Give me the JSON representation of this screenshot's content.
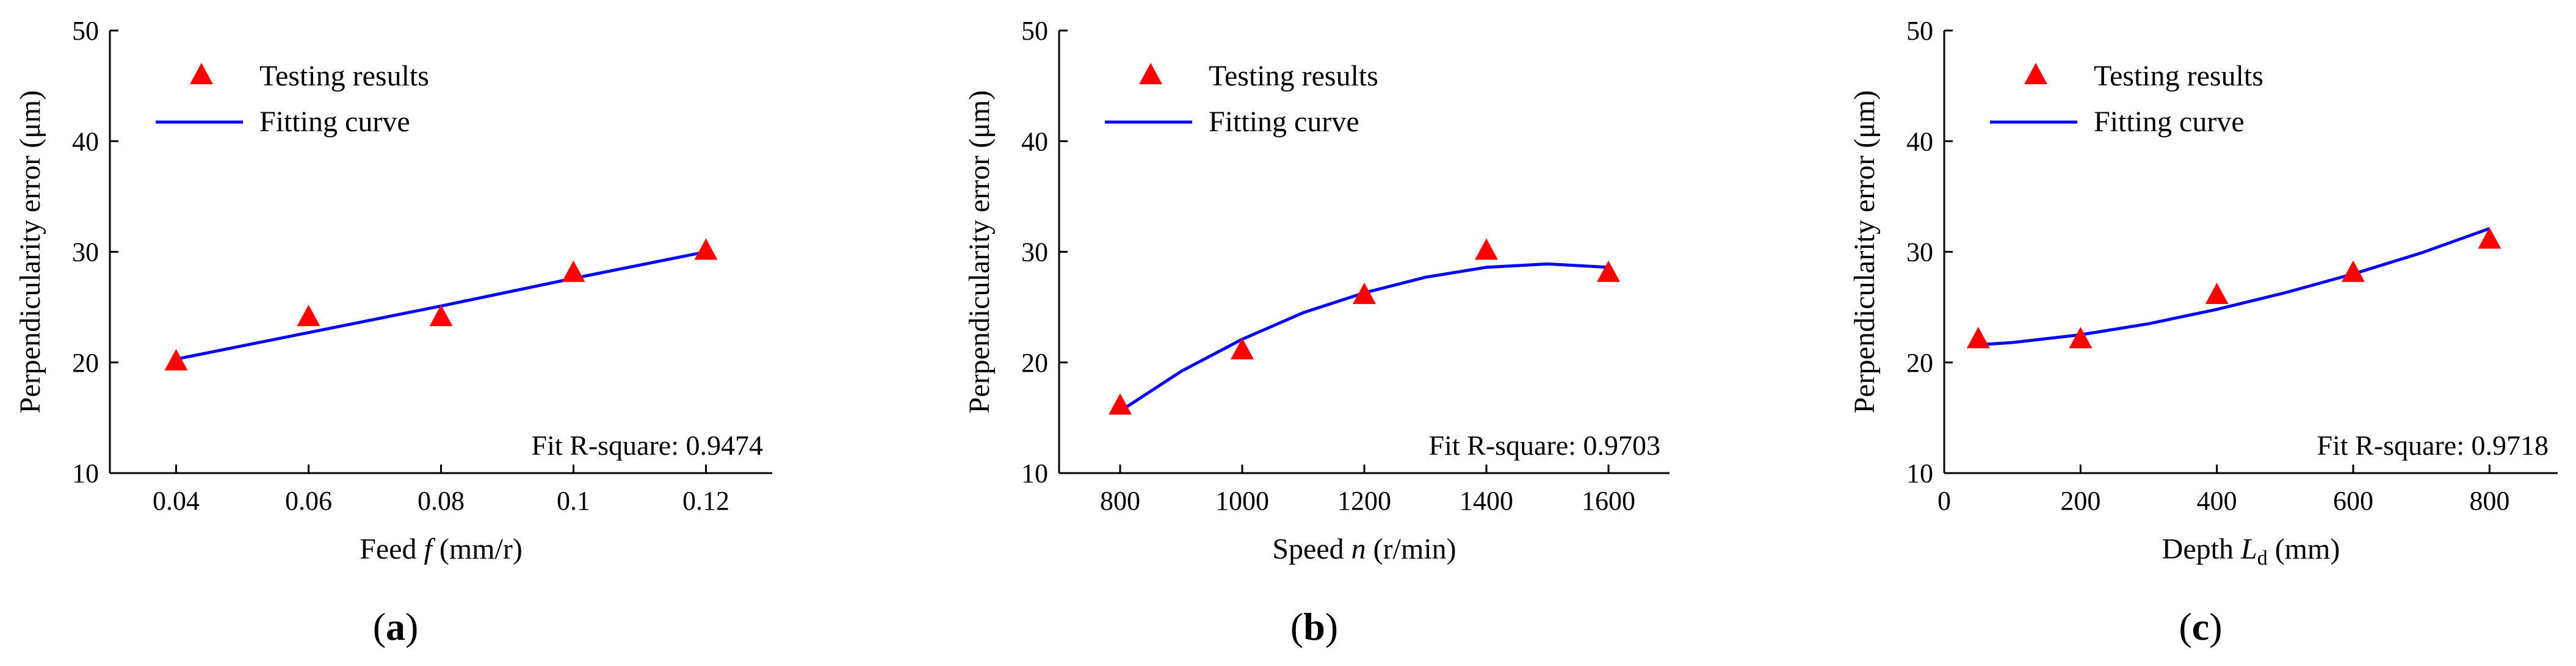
{
  "chart_data": [
    {
      "type": "scatter",
      "panel_label": "a",
      "xlabel": "Feed f (mm/r)",
      "xlabel_parts": {
        "pre": "Feed ",
        "var": "f",
        "sub": "",
        "post": " (mm/r)"
      },
      "ylabel": "Perpendicularity error (μm)",
      "xlim": [
        0.03,
        0.13
      ],
      "ylim": [
        10,
        50
      ],
      "xticks": [
        0.04,
        0.06,
        0.08,
        0.1,
        0.12
      ],
      "xtick_labels": [
        "0.04",
        "0.06",
        "0.08",
        "0.1",
        "0.12"
      ],
      "yticks": [
        10,
        20,
        30,
        40,
        50
      ],
      "ytick_labels": [
        "10",
        "20",
        "30",
        "40",
        "50"
      ],
      "legend": [
        "Testing results",
        "Fitting curve"
      ],
      "legend_position": "top-left",
      "annotation": "Fit R-square: 0.9474",
      "series": [
        {
          "name": "Testing results",
          "kind": "points",
          "color": "#ff0000",
          "x": [
            0.04,
            0.06,
            0.08,
            0.1,
            0.12
          ],
          "y": [
            20,
            24,
            24,
            28,
            30
          ]
        },
        {
          "name": "Fitting curve",
          "kind": "line",
          "color": "#0000ff",
          "x": [
            0.04,
            0.06,
            0.08,
            0.1,
            0.12
          ],
          "y": [
            20.3,
            22.7,
            25.1,
            27.6,
            30.0
          ]
        }
      ]
    },
    {
      "type": "scatter",
      "panel_label": "b",
      "xlabel": "Speed n (r/min)",
      "xlabel_parts": {
        "pre": "Speed ",
        "var": "n",
        "sub": "",
        "post": " (r/min)"
      },
      "ylabel": "Perpendicularity error (μm)",
      "xlim": [
        700,
        1700
      ],
      "ylim": [
        10,
        50
      ],
      "xticks": [
        800,
        1000,
        1200,
        1400,
        1600
      ],
      "xtick_labels": [
        "800",
        "1000",
        "1200",
        "1400",
        "1600"
      ],
      "yticks": [
        10,
        20,
        30,
        40,
        50
      ],
      "ytick_labels": [
        "10",
        "20",
        "30",
        "40",
        "50"
      ],
      "legend": [
        "Testing results",
        "Fitting curve"
      ],
      "legend_position": "top-left",
      "annotation": "Fit R-square: 0.9703",
      "series": [
        {
          "name": "Testing results",
          "kind": "points",
          "color": "#ff0000",
          "x": [
            800,
            1000,
            1200,
            1400,
            1600
          ],
          "y": [
            16,
            21,
            26,
            30,
            28
          ]
        },
        {
          "name": "Fitting curve",
          "kind": "line",
          "color": "#0000ff",
          "x": [
            800,
            900,
            1000,
            1100,
            1200,
            1300,
            1400,
            1500,
            1600
          ],
          "y": [
            15.6,
            19.2,
            22.1,
            24.5,
            26.3,
            27.7,
            28.6,
            28.9,
            28.6
          ]
        }
      ]
    },
    {
      "type": "scatter",
      "panel_label": "c",
      "xlabel": "Depth Ld (mm)",
      "xlabel_parts": {
        "pre": "Depth ",
        "var": "L",
        "sub": "d",
        "post": " (mm)"
      },
      "ylabel": "Perpendicularity error (μm)",
      "xlim": [
        0,
        900
      ],
      "ylim": [
        10,
        50
      ],
      "xticks": [
        0,
        200,
        400,
        600,
        800
      ],
      "xtick_labels": [
        "0",
        "200",
        "400",
        "600",
        "800"
      ],
      "yticks": [
        10,
        20,
        30,
        40,
        50
      ],
      "ytick_labels": [
        "10",
        "20",
        "30",
        "40",
        "50"
      ],
      "legend": [
        "Testing results",
        "Fitting curve"
      ],
      "legend_position": "top-left",
      "annotation": "Fit R-square: 0.9718",
      "series": [
        {
          "name": "Testing results",
          "kind": "points",
          "color": "#ff0000",
          "x": [
            50,
            200,
            400,
            600,
            800
          ],
          "y": [
            22,
            22,
            26,
            28,
            31
          ]
        },
        {
          "name": "Fitting curve",
          "kind": "line",
          "color": "#0000ff",
          "x": [
            50,
            100,
            200,
            300,
            400,
            500,
            600,
            700,
            800
          ],
          "y": [
            21.6,
            21.8,
            22.5,
            23.5,
            24.8,
            26.3,
            28.0,
            29.9,
            32.1
          ]
        }
      ]
    }
  ]
}
